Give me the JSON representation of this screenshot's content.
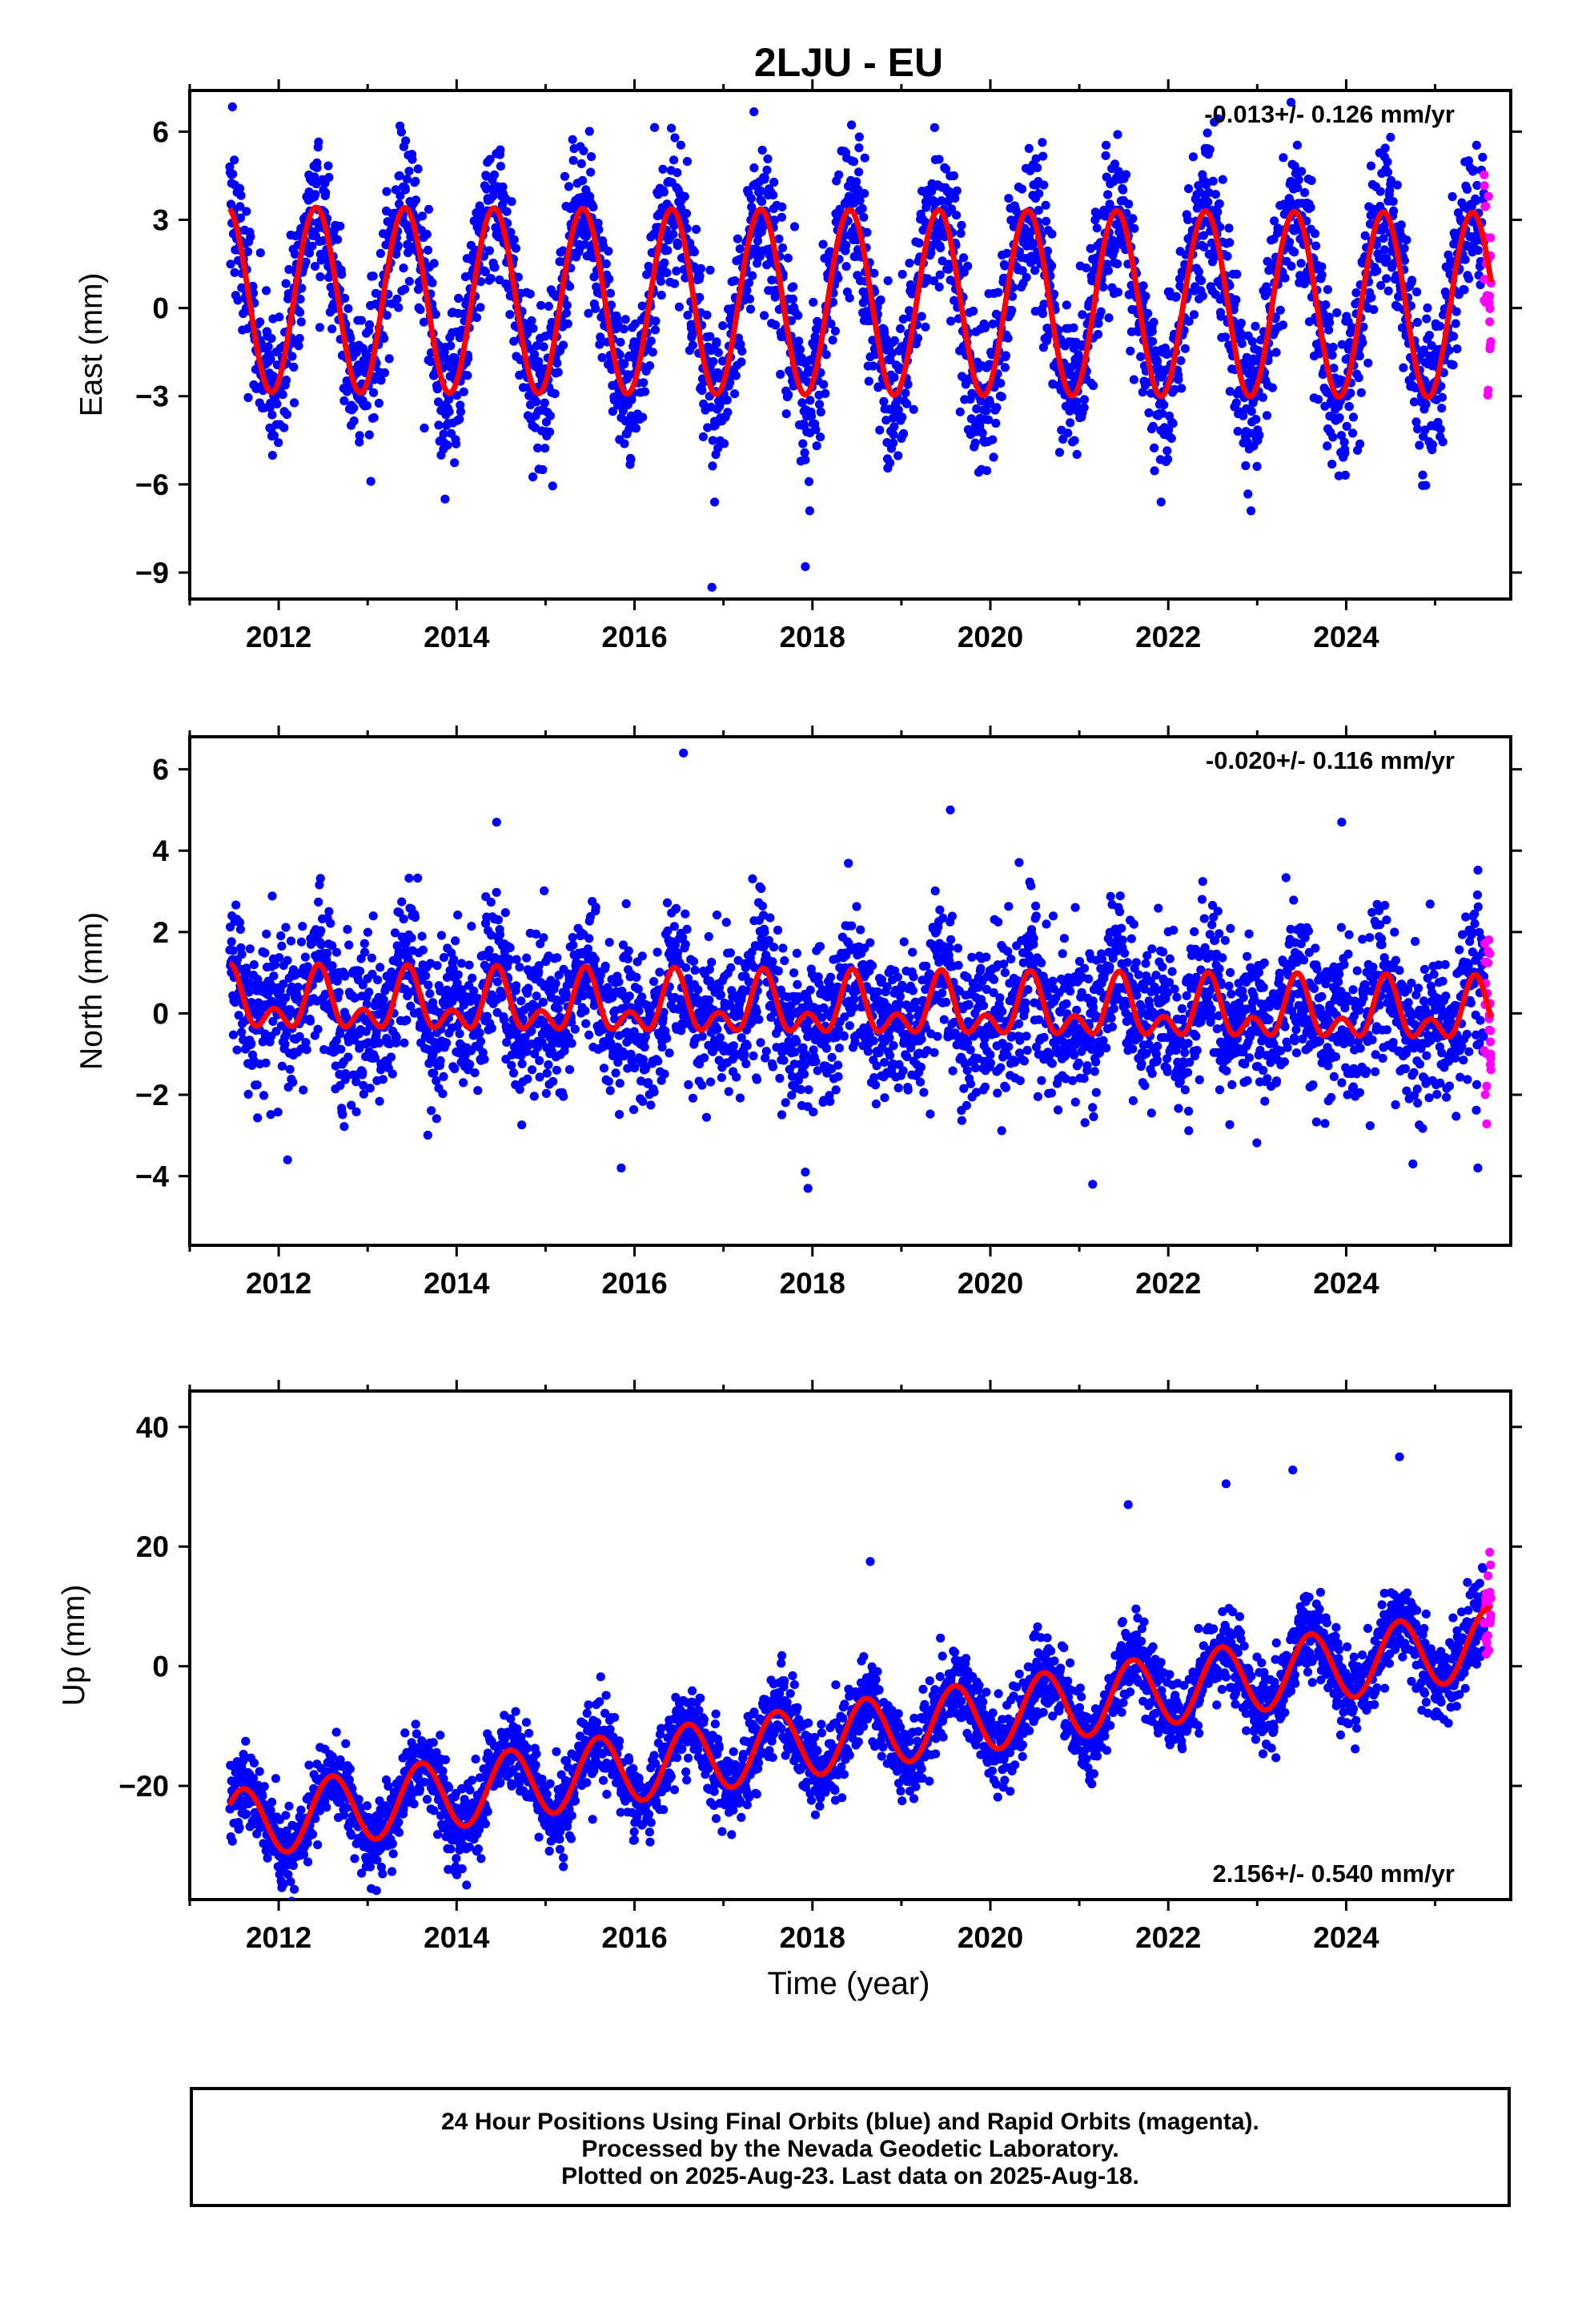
{
  "title": "2LJU - EU",
  "xlabel": "Time (year)",
  "footer": {
    "line1": "24 Hour Positions Using Final Orbits (blue) and Rapid Orbits (magenta).",
    "line2": "Processed by the Nevada Geodetic Laboratory.",
    "line3": "Plotted on 2025-Aug-23. Last data on 2025-Aug-18."
  },
  "colors": {
    "final": "#0000ff",
    "rapid": "#ff00ff",
    "model": "#ff0000",
    "frame": "#000000"
  },
  "chart_data": [
    {
      "type": "scatter",
      "component": "east",
      "ylabel": "East (mm)",
      "rate_label": "-0.013+/- 0.126 mm/yr",
      "rate_position": "top-right",
      "xlim": [
        2011.0,
        2025.85
      ],
      "ylim": [
        -9.9,
        7.4
      ],
      "xticks": [
        2012,
        2014,
        2016,
        2018,
        2020,
        2022,
        2024
      ],
      "yticks": [
        6,
        3,
        0,
        -3,
        -6,
        -9
      ],
      "data_span": [
        2011.45,
        2025.55
      ],
      "rapid_span": [
        2025.55,
        2025.63
      ],
      "model": {
        "offset": 0.2,
        "rate": -0.013,
        "annual_amp": 3.15,
        "annual_peak": 2012.42,
        "semiannual_amp": 0.0,
        "semiannual_peak": 2012.2
      },
      "scatter_sd": 1.3,
      "outliers": [
        [
          2016.87,
          -9.5
        ],
        [
          2017.92,
          -8.8
        ],
        [
          2017.97,
          -6.9
        ],
        [
          2016.9,
          -6.6
        ],
        [
          2013.87,
          -6.5
        ],
        [
          2022.93,
          -6.9
        ],
        [
          2023.38,
          7.0
        ],
        [
          2021.92,
          -6.6
        ]
      ],
      "series": [
        {
          "name": "Final Orbits",
          "color": "#0000ff"
        },
        {
          "name": "Rapid Orbits",
          "color": "#ff00ff"
        },
        {
          "name": "Model",
          "color": "#ff0000"
        }
      ]
    },
    {
      "type": "scatter",
      "component": "north",
      "ylabel": "North (mm)",
      "rate_label": "-0.020+/- 0.116 mm/yr",
      "rate_position": "top-right",
      "xlim": [
        2011.0,
        2025.85
      ],
      "ylim": [
        -5.7,
        6.8
      ],
      "xticks": [
        2012,
        2014,
        2016,
        2018,
        2020,
        2022,
        2024
      ],
      "yticks": [
        6,
        4,
        2,
        0,
        -2,
        -4
      ],
      "data_span": [
        2011.45,
        2025.55
      ],
      "rapid_span": [
        2025.55,
        2025.63
      ],
      "model": {
        "offset": 0.1,
        "rate": -0.02,
        "annual_amp": 0.55,
        "annual_peak": 2012.45,
        "semiannual_amp": 0.45,
        "semiannual_peak": 2012.45
      },
      "scatter_sd": 0.95,
      "outliers": [
        [
          2016.55,
          6.4
        ],
        [
          2019.55,
          5.0
        ],
        [
          2023.95,
          4.7
        ],
        [
          2014.45,
          4.7
        ],
        [
          2017.95,
          -4.3
        ],
        [
          2017.92,
          -3.9
        ],
        [
          2021.15,
          -4.2
        ],
        [
          2024.75,
          -3.7
        ],
        [
          2012.1,
          -3.6
        ],
        [
          2015.85,
          -3.8
        ],
        [
          2025.48,
          -3.8
        ]
      ],
      "series": [
        {
          "name": "Final Orbits",
          "color": "#0000ff"
        },
        {
          "name": "Rapid Orbits",
          "color": "#ff00ff"
        },
        {
          "name": "Model",
          "color": "#ff0000"
        }
      ]
    },
    {
      "type": "scatter",
      "component": "up",
      "ylabel": "Up (mm)",
      "rate_label": "2.156+/- 0.540 mm/yr",
      "rate_position": "bottom-right",
      "xlim": [
        2011.0,
        2025.85
      ],
      "ylim": [
        -39,
        46
      ],
      "xticks": [
        2012,
        2014,
        2016,
        2018,
        2020,
        2022,
        2024
      ],
      "yticks": [
        40,
        20,
        0,
        -20
      ],
      "data_span": [
        2011.45,
        2025.55
      ],
      "rapid_span": [
        2025.55,
        2025.63
      ],
      "model": {
        "offset": -12.5,
        "rate": 2.156,
        "annual_amp": 5.8,
        "annual_peak": 2012.6,
        "semiannual_amp": 0.0,
        "semiannual_peak": 2012.6
      },
      "scatter_sd": 3.4,
      "outliers": [
        [
          2013.1,
          -37.5
        ],
        [
          2015.2,
          -33.5
        ],
        [
          2015.2,
          -32.0
        ],
        [
          2012.05,
          -34.0
        ],
        [
          2024.6,
          35.0
        ],
        [
          2023.4,
          32.8
        ],
        [
          2022.65,
          30.5
        ],
        [
          2018.65,
          17.5
        ],
        [
          2021.55,
          27.0
        ],
        [
          2024.9,
          -6.0
        ]
      ],
      "series": [
        {
          "name": "Final Orbits",
          "color": "#0000ff"
        },
        {
          "name": "Rapid Orbits",
          "color": "#ff00ff"
        },
        {
          "name": "Model",
          "color": "#ff0000"
        }
      ]
    }
  ]
}
